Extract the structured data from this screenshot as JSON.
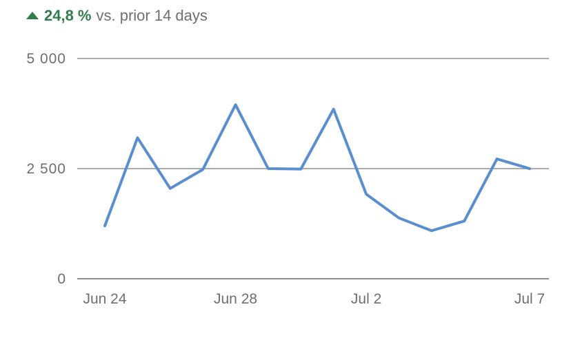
{
  "header": {
    "change_pct": "24,8 %",
    "comparison": "vs. prior 14 days",
    "trend": "up",
    "trend_color": "#2e7d4a"
  },
  "footer": {
    "note": ""
  },
  "chart_data": {
    "type": "line",
    "title": "",
    "xlabel": "",
    "ylabel": "",
    "x": [
      "Jun 24",
      "Jun 25",
      "Jun 26",
      "Jun 27",
      "Jun 28",
      "Jun 29",
      "Jun 30",
      "Jul 1",
      "Jul 2",
      "Jul 3",
      "Jul 4",
      "Jul 5",
      "Jul 6",
      "Jul 7"
    ],
    "x_tick_labels": [
      "Jun 24",
      "Jun 28",
      "Jul 2",
      "Jul 7"
    ],
    "y_tick_labels": [
      "5 000",
      "2 500",
      "0"
    ],
    "ylim": [
      0,
      5000
    ],
    "yticks": [
      0,
      2500,
      5000
    ],
    "grid": true,
    "series": [
      {
        "values": [
          1200,
          3200,
          2050,
          2480,
          3950,
          2500,
          2490,
          3850,
          1920,
          1380,
          1090,
          1310,
          2720,
          2500
        ],
        "color": "#5b8ecf"
      }
    ]
  }
}
